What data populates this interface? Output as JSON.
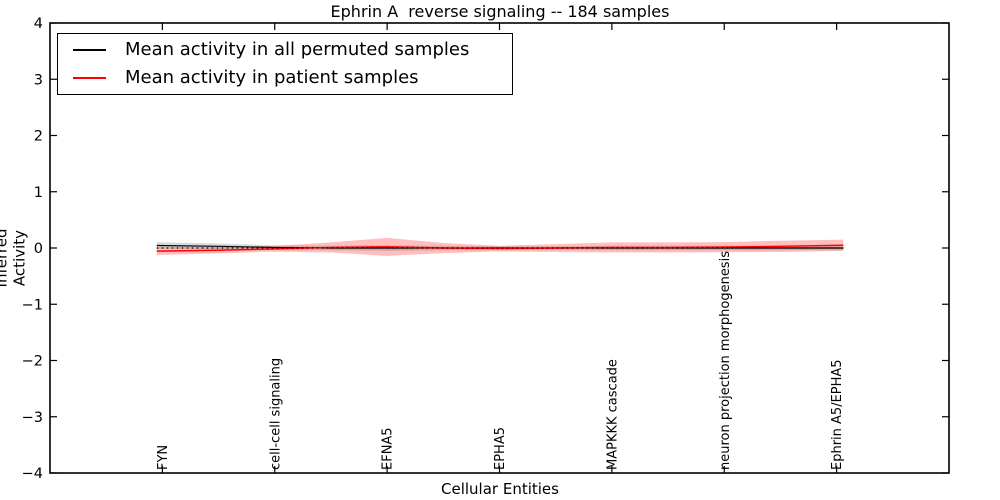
{
  "chart_data": {
    "type": "line",
    "title": "Ephrin A  reverse signaling -- 184 samples",
    "xlabel": "Cellular Entities",
    "ylabel": "Inferred Activity",
    "ylim": [
      -4,
      4
    ],
    "ytick_values": [
      4,
      3,
      2,
      1,
      0,
      -1,
      -2,
      -3,
      -4
    ],
    "ytick_labels": [
      "4",
      "3",
      "2",
      "1",
      "0",
      "−1",
      "−2",
      "−3",
      "−4"
    ],
    "categories": [
      "FYN",
      "cell-cell signaling",
      "EFNA5",
      "EPHA5",
      "MAPKKK cascade",
      "neuron projection morphogenesis",
      "Ephrin A5/EPHA5"
    ],
    "grid": false,
    "frame": true,
    "legend": {
      "position": "upper left",
      "entries": [
        {
          "label": "Mean activity in all permuted samples",
          "color": "#000000"
        },
        {
          "label": "Mean activity in patient samples",
          "color": "#ff0000"
        }
      ]
    },
    "x": [
      -0.05,
      0.5,
      1,
      1.5,
      2,
      2.5,
      3,
      3.5,
      4,
      4.5,
      5,
      5.5,
      6.06
    ],
    "series": [
      {
        "name": "permuted_mean",
        "color": "#000000",
        "style": "solid",
        "line_width": 1.2,
        "values": [
          0.045,
          0.03,
          0.01,
          0.0,
          0.0,
          0.0,
          0.0,
          0.0,
          0.0,
          0.0,
          0.0,
          0.0,
          0.0
        ],
        "band_halfwidth": [
          0.06,
          0.05,
          0.04,
          0.04,
          0.05,
          0.04,
          0.03,
          0.03,
          0.04,
          0.04,
          0.04,
          0.04,
          0.04
        ],
        "band_color": "rgba(0,0,0,0.15)"
      },
      {
        "name": "patient_mean",
        "color": "#ff0000",
        "style": "solid",
        "line_width": 1.5,
        "values": [
          -0.055,
          -0.04,
          -0.015,
          0.01,
          0.02,
          0.0,
          -0.01,
          0.0,
          0.01,
          0.01,
          0.015,
          0.03,
          0.05
        ],
        "band_halfwidth": [
          0.07,
          0.055,
          0.05,
          0.09,
          0.16,
          0.09,
          0.05,
          0.07,
          0.09,
          0.09,
          0.09,
          0.1,
          0.1
        ],
        "band_color": "rgba(255,0,0,0.25)"
      },
      {
        "name": "zero_reference",
        "color": "#000000",
        "style": "dotted",
        "line_width": 1.2,
        "values": [
          0,
          0,
          0,
          0,
          0,
          0,
          0,
          0,
          0,
          0,
          0,
          0,
          0
        ]
      }
    ]
  }
}
